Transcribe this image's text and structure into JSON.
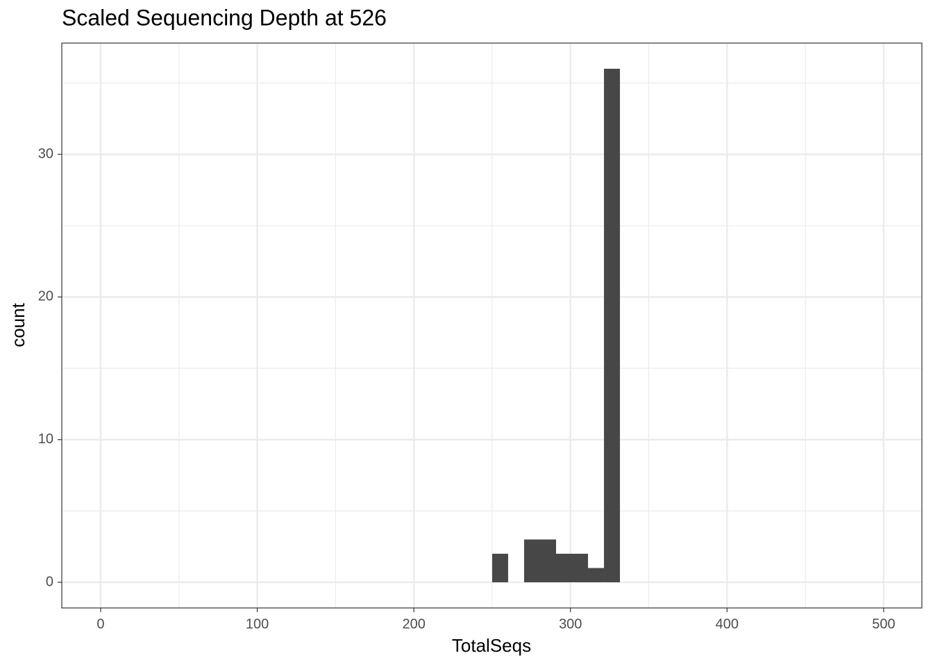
{
  "chart_data": {
    "type": "histogram",
    "title": "Scaled Sequencing Depth at 526",
    "x_label": "TotalSeqs",
    "y_label": "count",
    "bins": [
      250,
      260.2,
      270.4,
      280.6,
      290.8,
      301,
      311.2,
      321.4,
      331.6
    ],
    "counts": [
      2,
      0,
      3,
      3,
      2,
      2,
      1,
      36
    ],
    "color": "#474747",
    "xlim": [
      -24.8,
      524.4
    ],
    "xticks": [
      0,
      100,
      200,
      300,
      400,
      500
    ],
    "ylim": [
      -1.8,
      37.8
    ],
    "yticks": [
      0,
      10,
      20,
      30
    ],
    "grid": true,
    "minor_grid": true
  }
}
